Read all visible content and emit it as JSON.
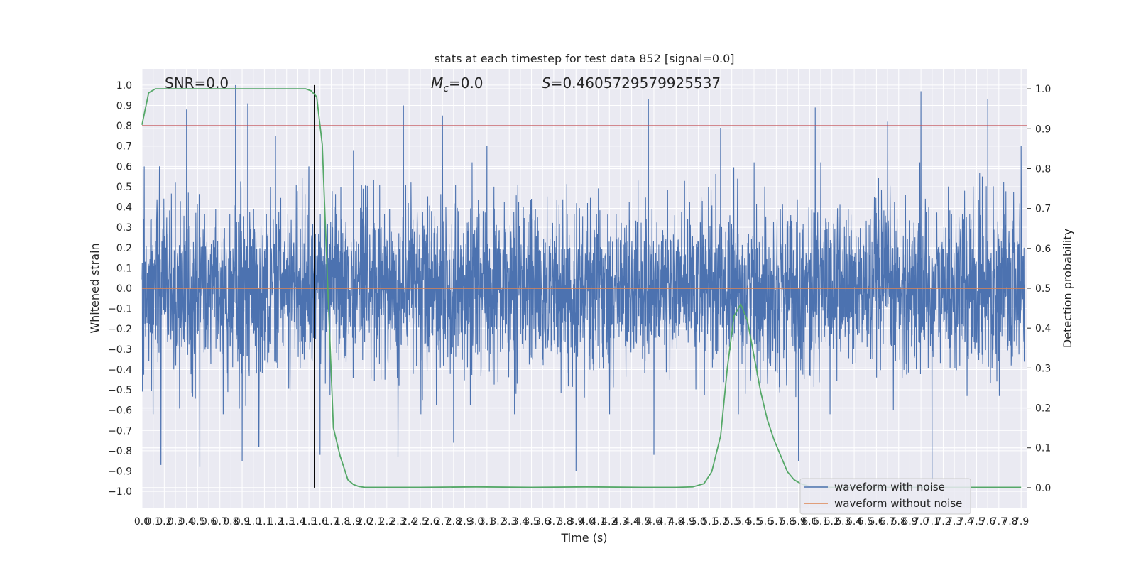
{
  "chart_data": {
    "type": "line",
    "title": "stats at each timestep for test data 852 [signal=0.0]",
    "xlabel": "Time (s)",
    "ylabel": "Whitened strain",
    "y2label": "Detection probability",
    "xlim": [
      0.0,
      7.95
    ],
    "ylim": [
      -1.08,
      1.08
    ],
    "y2lim": [
      -0.05,
      1.05
    ],
    "xticks": [
      0.0,
      0.1,
      0.2,
      0.3,
      0.4,
      0.5,
      0.6,
      0.7,
      0.8,
      0.9,
      1.0,
      1.1,
      1.2,
      1.3,
      1.4,
      1.5,
      1.6,
      1.7,
      1.8,
      1.9,
      2.0,
      2.1,
      2.2,
      2.3,
      2.4,
      2.5,
      2.6,
      2.7,
      2.8,
      2.9,
      3.0,
      3.1,
      3.2,
      3.3,
      3.4,
      3.5,
      3.6,
      3.7,
      3.8,
      3.9,
      4.0,
      4.1,
      4.2,
      4.3,
      4.4,
      4.5,
      4.6,
      4.7,
      4.8,
      4.9,
      5.0,
      5.1,
      5.2,
      5.3,
      5.4,
      5.5,
      5.6,
      5.7,
      5.8,
      5.9,
      6.0,
      6.1,
      6.2,
      6.3,
      6.4,
      6.5,
      6.6,
      6.7,
      6.8,
      6.9,
      7.0,
      7.1,
      7.2,
      7.3,
      7.4,
      7.5,
      7.6,
      7.7,
      7.8,
      7.9
    ],
    "yticks": [
      -1.0,
      -0.9,
      -0.8,
      -0.7,
      -0.6,
      -0.5,
      -0.4,
      -0.3,
      -0.2,
      -0.1,
      0.0,
      0.1,
      0.2,
      0.3,
      0.4,
      0.5,
      0.6,
      0.7,
      0.8,
      0.9,
      1.0
    ],
    "y2ticks": [
      0.0,
      0.1,
      0.2,
      0.3,
      0.4,
      0.5,
      0.6,
      0.7,
      0.8,
      0.9,
      1.0
    ],
    "grid": true,
    "legend_position": "bottom-right",
    "annotations": {
      "snr": "SNR=0.0",
      "mc": "=0.0",
      "mc_symbol": "M",
      "mc_subscript": "c",
      "s": "=0.4605729579925537",
      "s_symbol": "S"
    },
    "threshold_line": {
      "y": 0.8,
      "color": "#c44e52"
    },
    "marker_time": 1.55,
    "noise_waveform": {
      "name": "waveform with noise",
      "color": "#4c72b0",
      "description_envelope": "whitened noise, amplitude mostly within ±0.6 with peaks near ±1.0",
      "peak_samples": [
        {
          "t": 0.02,
          "v": 0.6
        },
        {
          "t": 0.1,
          "v": -0.62
        },
        {
          "t": 0.17,
          "v": -0.87
        },
        {
          "t": 0.3,
          "v": 0.52
        },
        {
          "t": 0.4,
          "v": 0.88
        },
        {
          "t": 0.52,
          "v": -0.88
        },
        {
          "t": 0.73,
          "v": -0.62
        },
        {
          "t": 0.84,
          "v": 1.0
        },
        {
          "t": 0.9,
          "v": -0.85
        },
        {
          "t": 0.95,
          "v": 0.91
        },
        {
          "t": 1.05,
          "v": -0.78
        },
        {
          "t": 1.2,
          "v": 0.75
        },
        {
          "t": 1.5,
          "v": 0.6
        },
        {
          "t": 1.6,
          "v": -0.82
        },
        {
          "t": 1.9,
          "v": 0.68
        },
        {
          "t": 2.3,
          "v": -0.83
        },
        {
          "t": 2.35,
          "v": 0.9
        },
        {
          "t": 2.7,
          "v": 0.85
        },
        {
          "t": 2.8,
          "v": -0.76
        },
        {
          "t": 3.1,
          "v": 0.7
        },
        {
          "t": 3.9,
          "v": -0.9
        },
        {
          "t": 4.55,
          "v": 0.93
        },
        {
          "t": 4.6,
          "v": -0.82
        },
        {
          "t": 5.2,
          "v": 0.79
        },
        {
          "t": 5.9,
          "v": -0.85
        },
        {
          "t": 6.05,
          "v": 0.89
        },
        {
          "t": 6.7,
          "v": 0.82
        },
        {
          "t": 7.0,
          "v": 0.97
        },
        {
          "t": 7.1,
          "v": -0.95
        },
        {
          "t": 7.6,
          "v": 0.93
        },
        {
          "t": 7.9,
          "v": 0.7
        }
      ]
    },
    "clean_waveform": {
      "name": "waveform without noise",
      "color": "#dd8452",
      "value": 0.0
    },
    "detection_probability": {
      "name": "",
      "color": "#55a868",
      "t": [
        0.0,
        0.06,
        0.12,
        0.2,
        0.3,
        0.5,
        0.8,
        1.0,
        1.2,
        1.4,
        1.47,
        1.52,
        1.57,
        1.62,
        1.67,
        1.72,
        1.78,
        1.85,
        1.9,
        1.95,
        2.0,
        2.1,
        2.5,
        3.0,
        3.5,
        4.0,
        4.5,
        4.8,
        4.95,
        5.05,
        5.12,
        5.2,
        5.26,
        5.32,
        5.38,
        5.44,
        5.5,
        5.56,
        5.62,
        5.68,
        5.74,
        5.8,
        5.86,
        5.92,
        6.0,
        6.2,
        6.6,
        7.0,
        7.5,
        7.9
      ],
      "values": [
        0.91,
        0.99,
        1.0,
        1.0,
        1.0,
        1.0,
        1.0,
        1.0,
        1.0,
        1.0,
        1.0,
        0.995,
        0.98,
        0.86,
        0.5,
        0.15,
        0.08,
        0.02,
        0.008,
        0.003,
        0.001,
        0.001,
        0.001,
        0.002,
        0.001,
        0.002,
        0.001,
        0.001,
        0.002,
        0.01,
        0.04,
        0.13,
        0.3,
        0.43,
        0.46,
        0.42,
        0.33,
        0.24,
        0.17,
        0.12,
        0.08,
        0.04,
        0.02,
        0.01,
        0.003,
        0.001,
        0.001,
        0.001,
        0.001,
        0.001
      ]
    },
    "vline_color": "#000000"
  },
  "legend": {
    "noise_label": "waveform with noise",
    "clean_label": "waveform without noise"
  }
}
